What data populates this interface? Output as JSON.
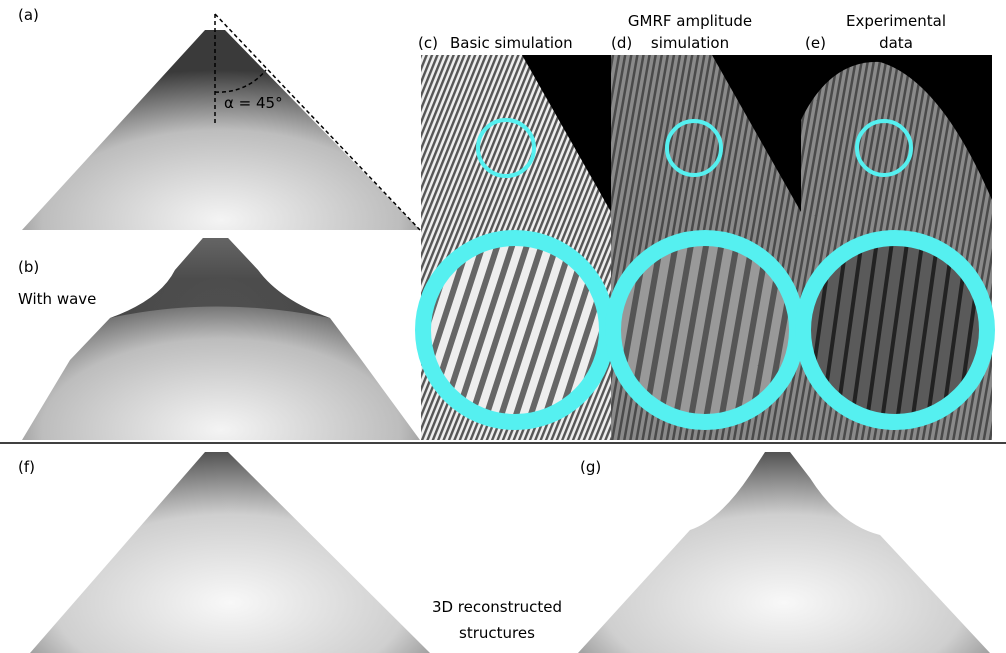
{
  "panels": [
    {
      "label": "(a)",
      "annotation": "α = 45°"
    },
    {
      "label": "(b)",
      "caption_lines": [
        "With wave"
      ]
    },
    {
      "label": "(c)",
      "caption_lines": [
        "Basic simulation"
      ]
    },
    {
      "label": "(d)",
      "caption_lines": [
        "GMRF amplitude",
        "simulation"
      ]
    },
    {
      "label": "(e)",
      "caption_lines": [
        "Experimental",
        "data"
      ]
    },
    {
      "label": "(f)"
    },
    {
      "label": "(g)"
    }
  ],
  "center_caption_lines": [
    "3D reconstructed",
    "structures"
  ]
}
